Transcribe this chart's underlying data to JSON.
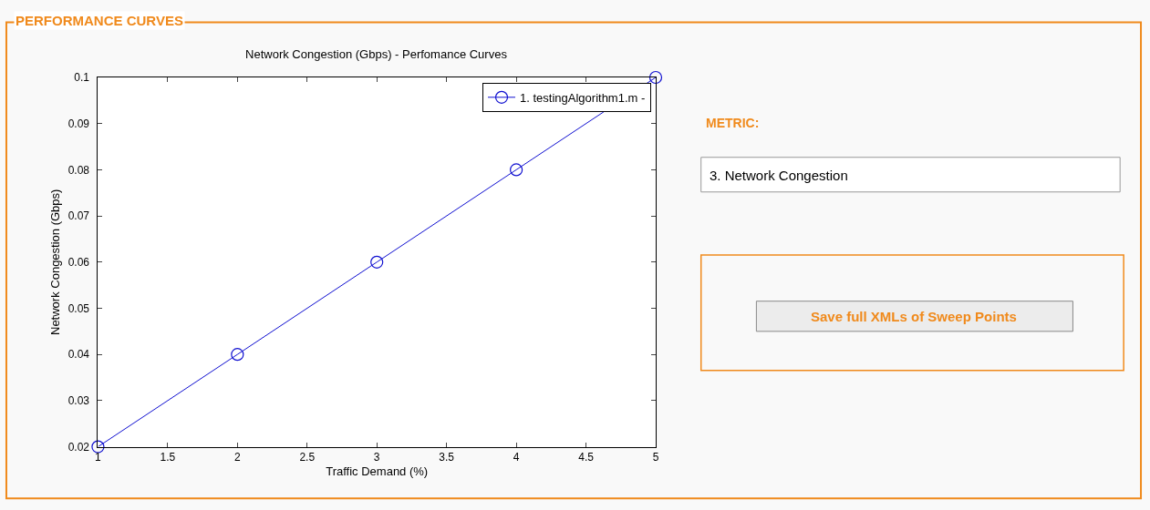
{
  "chart_data": {
    "type": "line",
    "title": "Network Congestion (Gbps) - Perfomance Curves",
    "xlabel": "Traffic Demand (%)",
    "ylabel": "Network Congestion (Gbps)",
    "x": [
      1,
      2,
      3,
      4,
      5
    ],
    "series": [
      {
        "name": "1. testingAlgorithm1.m -",
        "color": "#1010d0",
        "values": [
          0.02,
          0.04,
          0.06,
          0.08,
          0.1
        ]
      }
    ],
    "xlim": [
      1,
      5
    ],
    "xticks": [
      1,
      1.5,
      2,
      2.5,
      3,
      3.5,
      4,
      4.5,
      5
    ],
    "ylim": [
      0.02,
      0.1
    ],
    "yticks": [
      0.02,
      0.03,
      0.04,
      0.05,
      0.06,
      0.07,
      0.08,
      0.09,
      0.1
    ],
    "marker": "circle",
    "line_style": "solid",
    "legend": "top right",
    "annotations": [
      "PERFORMANCE CURVES",
      "METRIC:",
      "3. Network Congestion",
      "Save full XMLs of Sweep Points"
    ]
  }
}
